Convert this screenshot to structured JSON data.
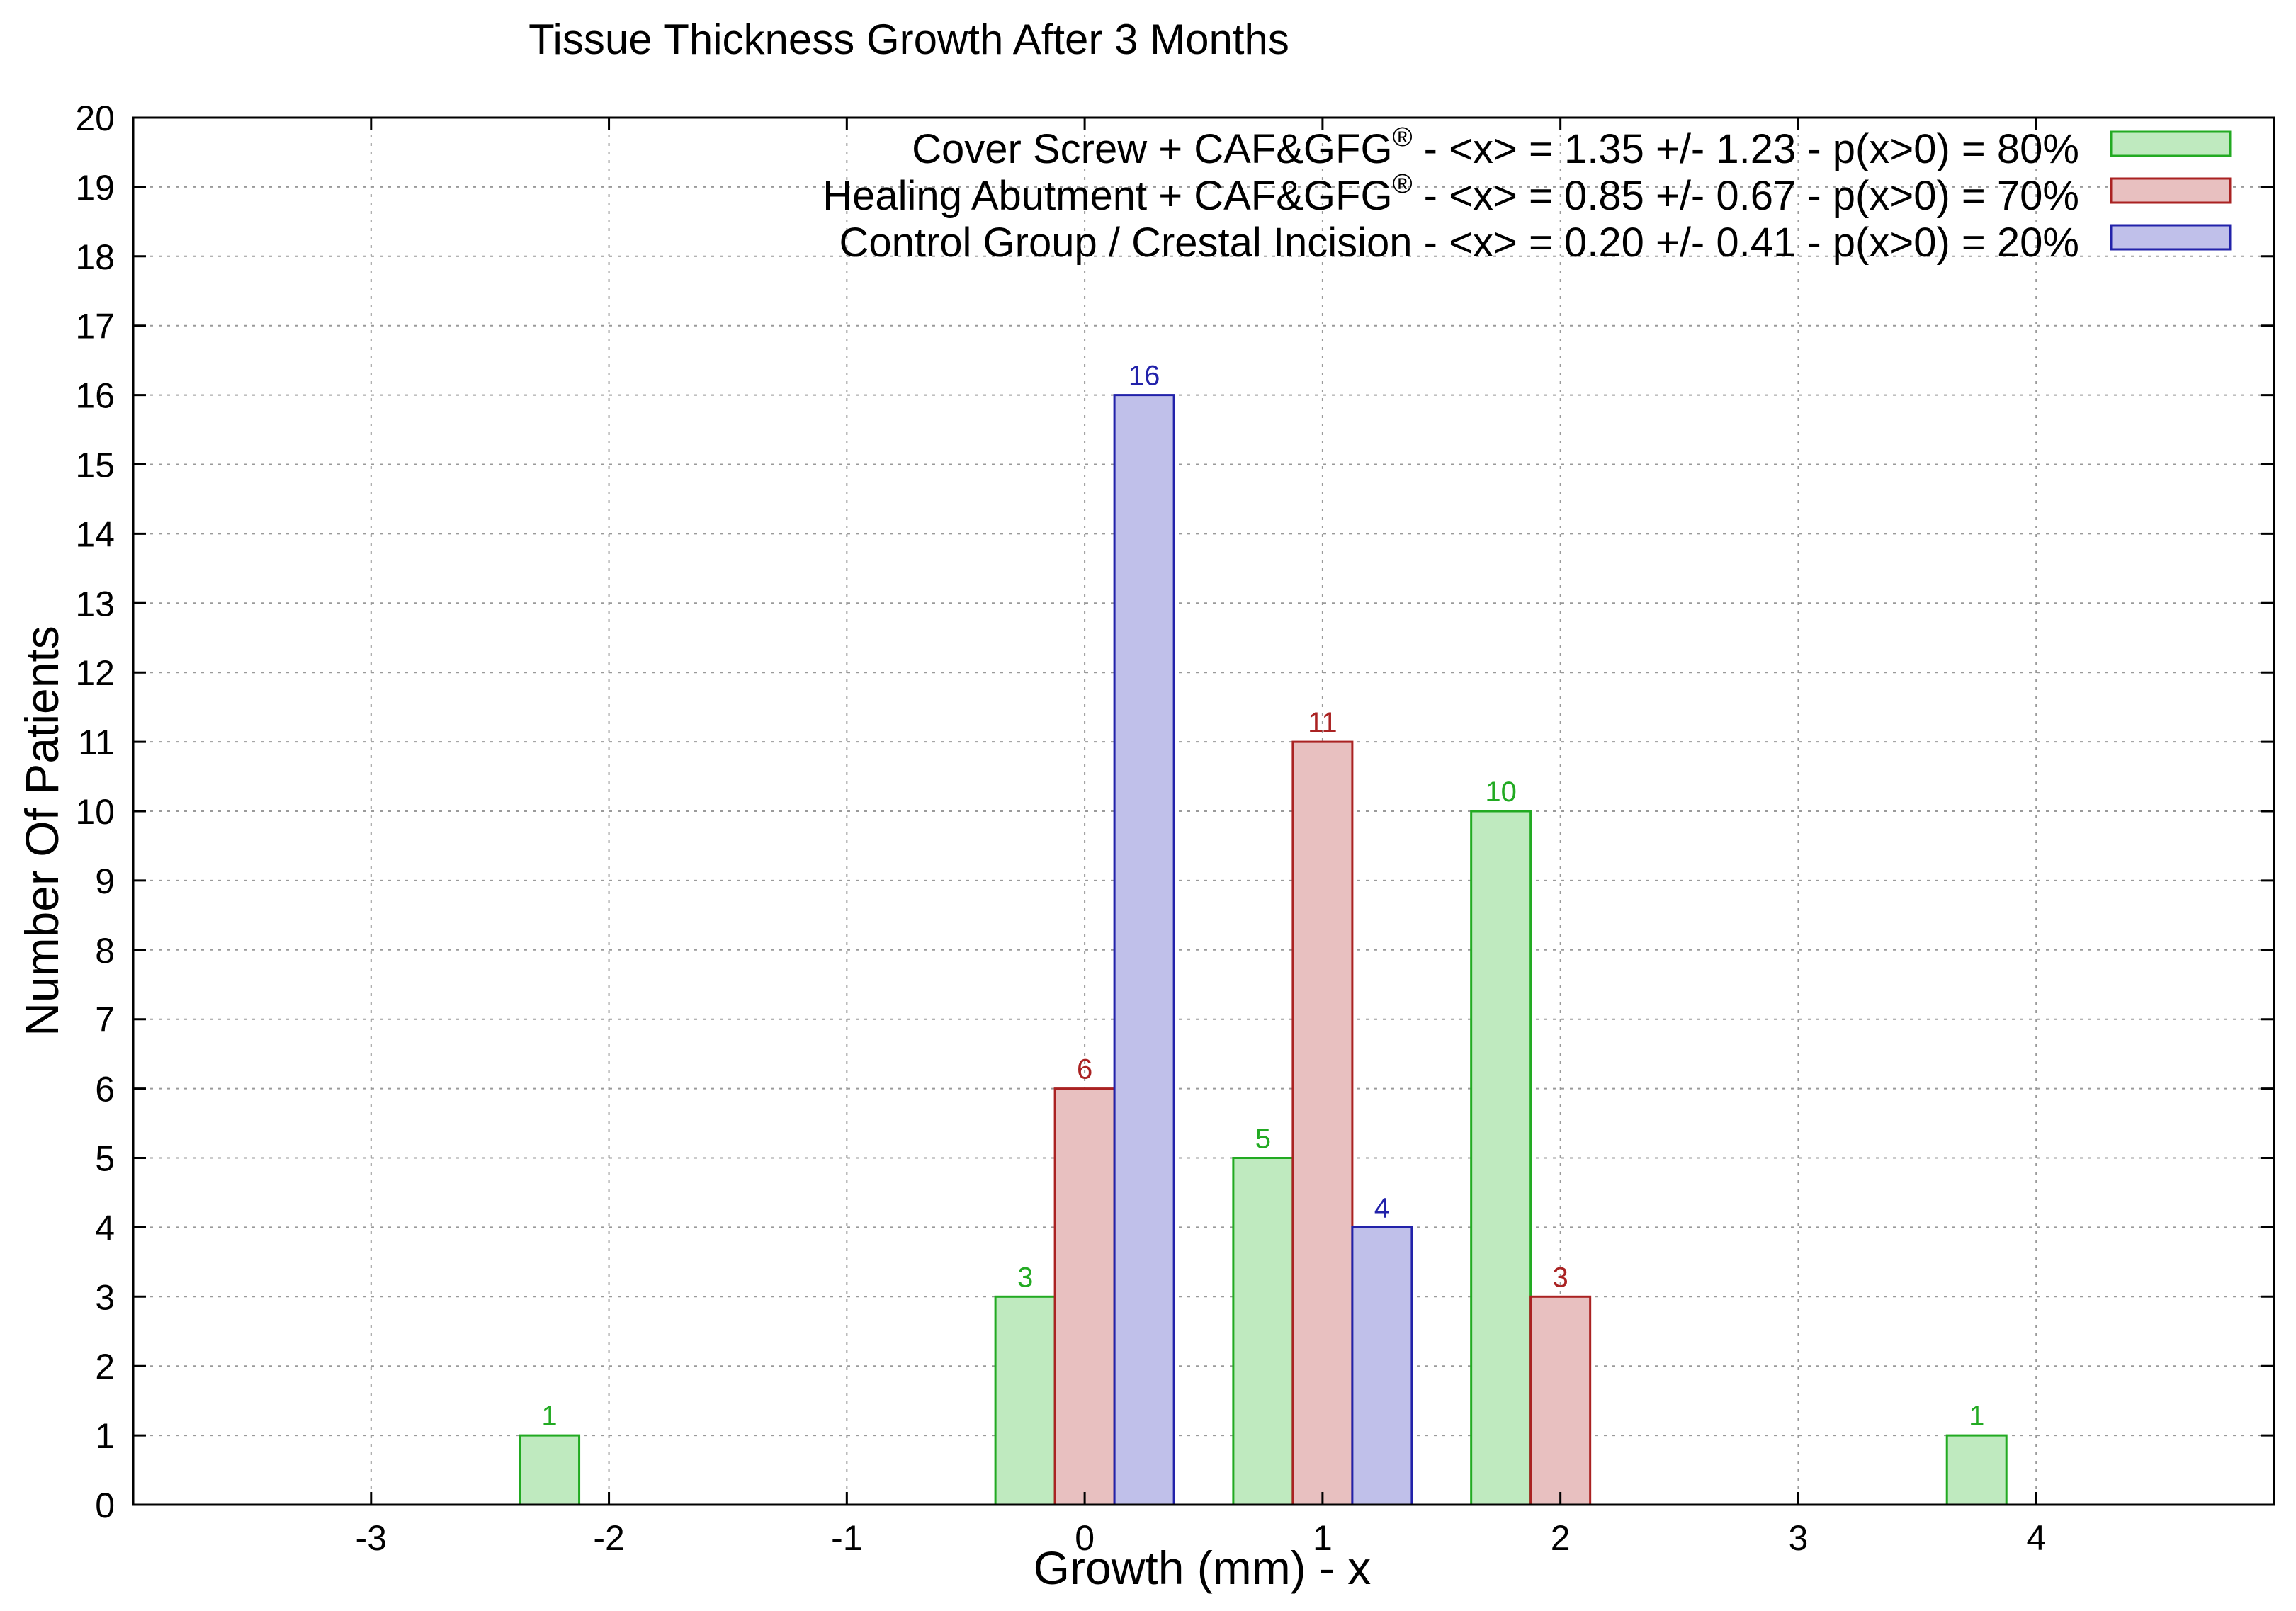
{
  "chart_data": {
    "type": "bar",
    "title": "Tissue Thickness Growth After 3 Months",
    "xlabel": "Growth (mm) - x",
    "ylabel": "Number Of Patients",
    "xlim": [
      -4,
      5
    ],
    "ylim": [
      0,
      20
    ],
    "x_ticks": [
      -3,
      -2,
      -1,
      0,
      1,
      2,
      3,
      4
    ],
    "y_ticks": [
      0,
      1,
      2,
      3,
      4,
      5,
      6,
      7,
      8,
      9,
      10,
      11,
      12,
      13,
      14,
      15,
      16,
      17,
      18,
      19,
      20
    ],
    "grid": true,
    "legend_position": "top-right",
    "series": [
      {
        "name": "Cover Screw + CAF&GFG® - <x> = 1.35 +/- 1.23 - p(x>0) = 80%",
        "legend_main": "Cover Screw + CAF&GFG",
        "legend_rest": " - <x> = 1.35 +/- 1.23 - p(x>0) = 80%",
        "fill": "#bfeabf",
        "stroke": "#22aa22",
        "label_color": "#22aa22",
        "points": [
          {
            "x": -2,
            "y": 1
          },
          {
            "x": 0,
            "y": 3
          },
          {
            "x": 1,
            "y": 5
          },
          {
            "x": 2,
            "y": 10
          },
          {
            "x": 4,
            "y": 1
          }
        ]
      },
      {
        "name": "Healing Abutment + CAF&GFG® - <x> = 0.85 +/- 0.67 - p(x>0) = 70%",
        "legend_main": "Healing Abutment + CAF&GFG",
        "legend_rest": " - <x> = 0.85 +/- 0.67 - p(x>0) = 70%",
        "fill": "#e8c0c0",
        "stroke": "#aa2222",
        "label_color": "#aa2222",
        "points": [
          {
            "x": 0,
            "y": 6
          },
          {
            "x": 1,
            "y": 11
          },
          {
            "x": 2,
            "y": 3
          }
        ]
      },
      {
        "name": "Control Group / Crestal Incision - <x> = 0.20 +/- 0.41 - p(x>0) = 20%",
        "legend_main": "Control Group / Crestal Incision - <x> = 0.20 +/- 0.41 - p(x>0) = 20%",
        "legend_rest": "",
        "fill": "#c0c0ea",
        "stroke": "#2222aa",
        "label_color": "#2222aa",
        "points": [
          {
            "x": 0,
            "y": 16
          },
          {
            "x": 1,
            "y": 4
          }
        ]
      }
    ]
  },
  "legend_superscript": "®"
}
